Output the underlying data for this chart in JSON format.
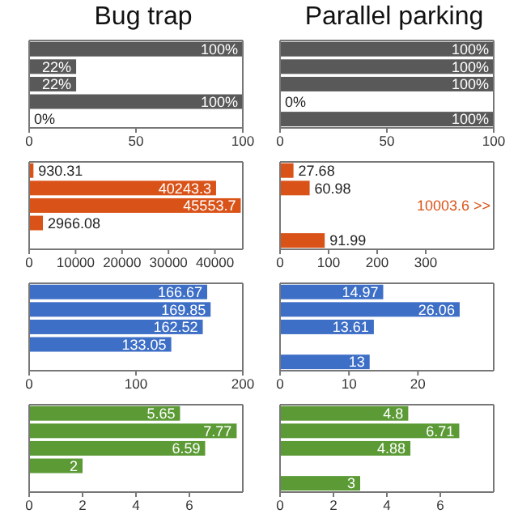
{
  "chart_data": [
    {
      "type": "bar",
      "orientation": "horizontal",
      "title": "Bug trap",
      "categories": [
        null,
        null,
        null,
        null,
        null
      ],
      "values": [
        100,
        22,
        22,
        100,
        0
      ],
      "value_labels": [
        "100%",
        "22%",
        "22%",
        "100%",
        "0%"
      ],
      "color": "#595959",
      "xlim": [
        0,
        100
      ],
      "xticks": [
        0,
        50,
        100
      ],
      "tick_labels": "x"
    },
    {
      "type": "bar",
      "orientation": "horizontal",
      "title": "Parallel parking",
      "categories": [
        null,
        null,
        null,
        null,
        null
      ],
      "values": [
        100,
        100,
        100,
        0,
        100
      ],
      "value_labels": [
        "100%",
        "100%",
        "100%",
        "0%",
        "100%"
      ],
      "color": "#595959",
      "xlim": [
        0,
        100
      ],
      "xticks": [
        0,
        50,
        100
      ],
      "tick_labels": "x"
    },
    {
      "type": "bar",
      "orientation": "horizontal",
      "categories": [
        null,
        null,
        null,
        null,
        null
      ],
      "values": [
        930.31,
        40243.3,
        45553.7,
        2966.08,
        null
      ],
      "value_labels": [
        "930.31",
        "40243.3",
        "45553.7",
        "2966.08",
        null
      ],
      "color": "#d95319",
      "xlim": [
        0,
        46000
      ],
      "xticks": [
        0,
        10000,
        20000,
        30000,
        40000
      ],
      "tick_labels": "x"
    },
    {
      "type": "bar",
      "orientation": "horizontal",
      "categories": [
        null,
        null,
        null,
        null,
        null
      ],
      "values": [
        27.68,
        60.98,
        null,
        null,
        91.99
      ],
      "value_labels": [
        "27.68",
        "60.98",
        null,
        null,
        "91.99"
      ],
      "annotations": [
        "10003.6 >>"
      ],
      "color": "#d95319",
      "xlim": [
        0,
        440
      ],
      "xticks": [
        0,
        100,
        200,
        300
      ],
      "tick_labels": "x"
    },
    {
      "type": "bar",
      "orientation": "horizontal",
      "categories": [
        null,
        null,
        null,
        null,
        null
      ],
      "values": [
        166.67,
        169.85,
        162.52,
        133.05,
        null
      ],
      "value_labels": [
        "166.67",
        "169.85",
        "162.52",
        "133.05",
        null
      ],
      "color": "#3e6fc6",
      "xlim": [
        0,
        200
      ],
      "xticks": [
        0,
        100,
        200
      ],
      "tick_labels": "x"
    },
    {
      "type": "bar",
      "orientation": "horizontal",
      "categories": [
        null,
        null,
        null,
        null,
        null
      ],
      "values": [
        14.97,
        26.06,
        13.61,
        null,
        13
      ],
      "value_labels": [
        "14.97",
        "26.06",
        "13.61",
        null,
        "13"
      ],
      "color": "#3e6fc6",
      "xlim": [
        0,
        31
      ],
      "xticks": [
        0,
        10,
        20
      ],
      "tick_labels": "x"
    },
    {
      "type": "bar",
      "orientation": "horizontal",
      "categories": [
        null,
        null,
        null,
        null,
        null
      ],
      "values": [
        5.65,
        7.77,
        6.59,
        2,
        null
      ],
      "value_labels": [
        "5.65",
        "7.77",
        "6.59",
        "2",
        null
      ],
      "color": "#5b9a35",
      "xlim": [
        0,
        8
      ],
      "xticks": [
        0,
        2,
        4,
        6
      ],
      "tick_labels": "x"
    },
    {
      "type": "bar",
      "orientation": "horizontal",
      "categories": [
        null,
        null,
        null,
        null,
        null
      ],
      "values": [
        4.8,
        6.71,
        4.88,
        null,
        3
      ],
      "value_labels": [
        "4.8",
        "6.71",
        "4.88",
        null,
        "3"
      ],
      "color": "#5b9a35",
      "xlim": [
        0,
        8
      ],
      "xticks": [
        0,
        2,
        4,
        6
      ],
      "tick_labels": "x"
    }
  ]
}
